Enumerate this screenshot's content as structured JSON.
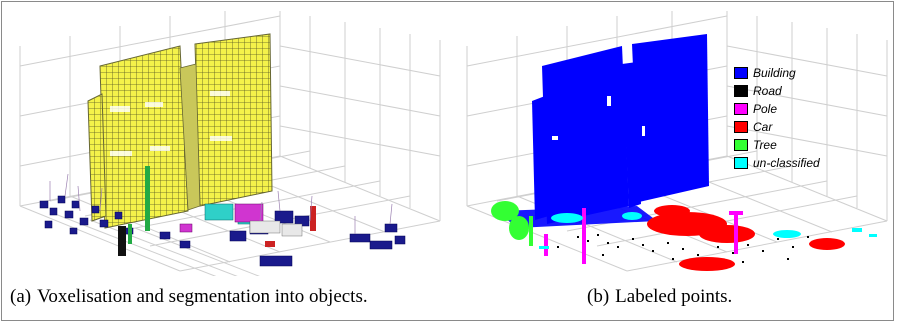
{
  "panels": [
    {
      "tag": "(a)",
      "caption": "Voxelisation and segmentation into objects."
    },
    {
      "tag": "(b)",
      "caption": "Labeled points."
    }
  ],
  "legend": [
    {
      "label": "Building",
      "color": "#0000ff"
    },
    {
      "label": "Road",
      "color": "#000000"
    },
    {
      "label": "Pole",
      "color": "#ff00ff"
    },
    {
      "label": "Car",
      "color": "#ff0000"
    },
    {
      "label": "Tree",
      "color": "#33ff33"
    },
    {
      "label": "un-classified",
      "color": "#00ffff"
    }
  ],
  "colors": {
    "voxel_yellow": "#f4f24a",
    "voxel_navy": "#1a1a8c",
    "grid": "#cfcfcf",
    "frame": "#8a8a8a"
  }
}
